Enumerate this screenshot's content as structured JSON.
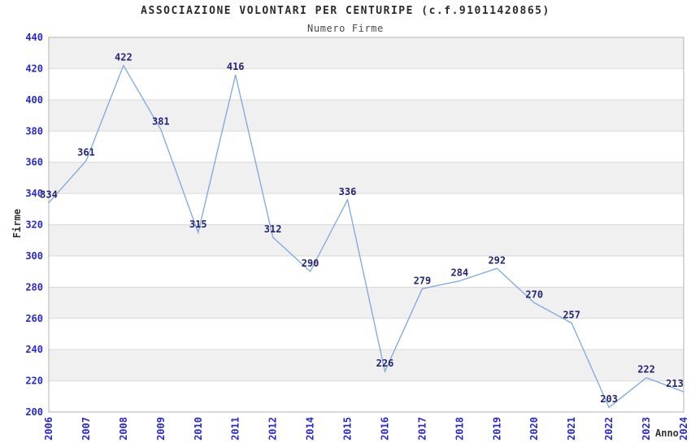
{
  "chart_data": {
    "type": "line",
    "title": "ASSOCIAZIONE VOLONTARI PER CENTURIPE (c.f.91011420865)",
    "subtitle": "Numero Firme",
    "xlabel": "Anno",
    "ylabel": "Firme",
    "categories": [
      "2006",
      "2007",
      "2008",
      "2009",
      "2010",
      "2011",
      "2012",
      "2014",
      "2015",
      "2016",
      "2017",
      "2018",
      "2019",
      "2020",
      "2021",
      "2022",
      "2023",
      "2024"
    ],
    "values": [
      334,
      361,
      422,
      381,
      315,
      416,
      312,
      290,
      336,
      226,
      279,
      284,
      292,
      270,
      257,
      203,
      222,
      213
    ],
    "ylim": [
      200,
      440
    ],
    "ytick_step": 20,
    "yticks": [
      200,
      220,
      240,
      260,
      280,
      300,
      320,
      340,
      360,
      380,
      400,
      420,
      440
    ],
    "grid": "horizontal-bands",
    "legend_position": "none",
    "point_labels_visible": true
  },
  "colors": {
    "line": "#7aa9dd",
    "tick_label": "#2828cc",
    "data_label": "#252577",
    "band": "#f0f0f0",
    "plot_bg": "#ffffff",
    "grid": "#d9d9d9",
    "border": "#b3b3b3",
    "title": "#2b2b2b",
    "axis_title": "#333333"
  }
}
